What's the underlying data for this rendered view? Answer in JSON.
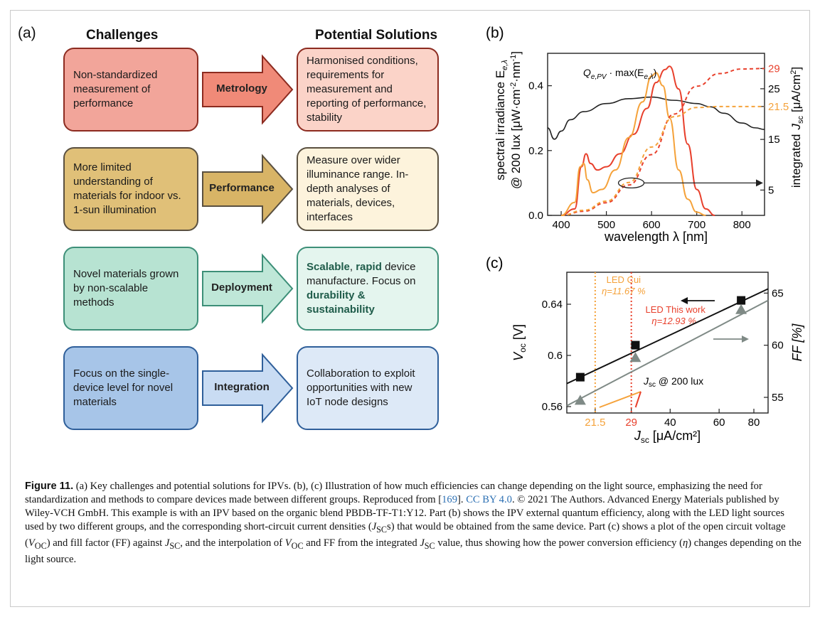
{
  "panel_a": {
    "label": "(a)",
    "col_challenges": "Challenges",
    "col_solutions": "Potential Solutions",
    "rows": [
      {
        "challenge": "Non-standardized measurement of performance",
        "arrow": "Metrology",
        "solution": "Harmonised conditions, requirements for measurement and reporting of performance, stability",
        "colors": {
          "fill": "#f2a59a",
          "stroke": "#8c2b20",
          "sfill": "#fbd3c8",
          "arrow": "#f08a78"
        }
      },
      {
        "challenge": "More limited understanding of materials for indoor vs. 1-sun illumination",
        "arrow": "Performance",
        "solution": "Measure over wider illuminance range. In-depth analyses of materials, devices, interfaces",
        "colors": {
          "fill": "#e0c078",
          "stroke": "#5a5040",
          "sfill": "#fdf3dc",
          "arrow": "#d8b466"
        }
      },
      {
        "challenge": "Novel materials grown by non-scalable methods",
        "arrow": "Deployment",
        "solution_parts": [
          "Scalable",
          ", ",
          "rapid",
          " device manufacture. Focus on ",
          "durability",
          " ",
          "& sustainability"
        ],
        "colors": {
          "fill": "#b7e3d2",
          "stroke": "#3d8f78",
          "sfill": "#e4f5ee",
          "arrow": "#bfe7d8"
        }
      },
      {
        "challenge": "Focus on the single-device level for novel materials",
        "arrow": "Integration",
        "solution": "Collaboration to exploit opportunities with new IoT node designs",
        "colors": {
          "fill": "#a7c5e8",
          "stroke": "#2f5f9a",
          "sfill": "#dde9f7",
          "arrow": "#c9dcf3"
        }
      }
    ]
  },
  "chart_data": [
    {
      "panel": "(b)",
      "type": "line",
      "xlabel": "wavelength λ [nm]",
      "ylabel_left_1": "spectral irradiance E",
      "ylabel_left_sub": "e,λ",
      "ylabel_left_2": "@ 200 lux [μW·cm",
      "ylabel_left_sup1": "-2",
      "ylabel_left_mid": "·nm",
      "ylabel_left_sup2": "-1",
      "ylabel_left_end": "]",
      "ylabel_right_1": "integrated",
      "ylabel_right_2": "J",
      "ylabel_right_sub": "sc",
      "ylabel_right_3": "[μA/cm",
      "ylabel_right_sup": "2",
      "ylabel_right_end": "]",
      "xlim": [
        370,
        850
      ],
      "ylim": [
        0,
        0.5
      ],
      "y2lim": [
        0,
        32
      ],
      "xticks": [
        400,
        500,
        600,
        700,
        800
      ],
      "yticks": [
        0.0,
        0.2,
        0.4
      ],
      "ytick_labels": [
        "0.0",
        "0.2",
        "0.4"
      ],
      "y2ticks": [
        5,
        15,
        25
      ],
      "y2_annotations": [
        {
          "value": 29,
          "label": "29",
          "color": "#e8402c"
        },
        {
          "value": 21.5,
          "label": "21.5",
          "color": "#f5a23a"
        }
      ],
      "annotation": {
        "text_main": "Q",
        "text_sub": "e,PV",
        "text_mid": " · max(E",
        "text_sub2": "e,λ",
        "text_end": ")"
      },
      "series": [
        {
          "kind": "eqe",
          "color": "#222222",
          "x": [
            370,
            385,
            400,
            420,
            450,
            500,
            550,
            600,
            650,
            700,
            730,
            760,
            800,
            830,
            850
          ],
          "y": [
            0.27,
            0.235,
            0.26,
            0.295,
            0.32,
            0.345,
            0.36,
            0.365,
            0.355,
            0.345,
            0.335,
            0.315,
            0.285,
            0.27,
            0.265
          ]
        },
        {
          "kind": "spectrum",
          "color": "#e8402c",
          "x": [
            400,
            430,
            445,
            455,
            465,
            480,
            500,
            530,
            560,
            590,
            610,
            630,
            640,
            660,
            680,
            700,
            720,
            740
          ],
          "y": [
            0.0,
            0.02,
            0.15,
            0.19,
            0.16,
            0.14,
            0.15,
            0.19,
            0.25,
            0.33,
            0.41,
            0.45,
            0.46,
            0.39,
            0.22,
            0.08,
            0.02,
            0.0
          ]
        },
        {
          "kind": "spectrum",
          "color": "#f5a23a",
          "x": [
            400,
            430,
            442,
            450,
            458,
            470,
            490,
            520,
            550,
            580,
            600,
            610,
            625,
            640,
            660,
            680,
            700,
            720
          ],
          "y": [
            0.0,
            0.04,
            0.15,
            0.16,
            0.11,
            0.07,
            0.08,
            0.14,
            0.24,
            0.35,
            0.43,
            0.44,
            0.4,
            0.3,
            0.14,
            0.05,
            0.01,
            0.0
          ]
        },
        {
          "kind": "integrated",
          "color": "#e8402c",
          "dashed": true,
          "x": [
            400,
            450,
            500,
            550,
            600,
            650,
            700,
            750,
            800,
            850
          ],
          "y2": [
            0,
            0.8,
            2.5,
            6.0,
            12.0,
            20.0,
            25.5,
            28.0,
            28.9,
            29.0
          ]
        },
        {
          "kind": "integrated",
          "color": "#f5a23a",
          "dashed": true,
          "x": [
            400,
            450,
            500,
            550,
            600,
            650,
            700,
            750,
            800,
            850
          ],
          "y2": [
            0,
            1.0,
            2.8,
            6.5,
            13.5,
            19.5,
            21.3,
            21.5,
            21.5,
            21.5
          ]
        }
      ]
    },
    {
      "panel": "(c)",
      "type": "scatter",
      "xlabel_main": "J",
      "xlabel_sub": "sc",
      "xlabel_end": " [μA/cm²]",
      "ylabel_left_main": "V",
      "ylabel_left_sub": "oc",
      "ylabel_left_end": " [V]",
      "ylabel_right": "FF [%]",
      "xscale": "log",
      "xlim": [
        17,
        90
      ],
      "ylim": [
        0.555,
        0.665
      ],
      "y2lim": [
        53.5,
        67
      ],
      "xticks": [
        40,
        60,
        80
      ],
      "xtick_labels": [
        "40",
        "60",
        "80"
      ],
      "xtick_highlights": [
        {
          "value": 21.5,
          "label": "21.5",
          "color": "#f5a23a"
        },
        {
          "value": 29,
          "label": "29",
          "color": "#e8402c"
        }
      ],
      "yticks": [
        0.56,
        0.6,
        0.64
      ],
      "ytick_labels": [
        "0.56",
        "0.6",
        "0.64"
      ],
      "y2ticks": [
        55,
        60,
        65
      ],
      "voc": {
        "x": [
          19,
          30,
          72
        ],
        "y": [
          0.583,
          0.608,
          0.643
        ]
      },
      "ff": {
        "x": [
          19,
          30,
          72
        ],
        "y2": [
          54.7,
          58.8,
          63.4
        ]
      },
      "vlines": [
        {
          "x": 21.5,
          "color": "#f5a23a",
          "label_1": "LED Cui",
          "label_2": "η=11.67 %"
        },
        {
          "x": 29,
          "color": "#e8402c",
          "label_1": "LED This work",
          "label_2": "η=12.93 %"
        }
      ],
      "jsc_note_main": "J",
      "jsc_note_sub": "sc",
      "jsc_note_end": " @ 200 lux"
    }
  ],
  "caption": {
    "fig": "Figure 11.",
    "t1": " (a) Key challenges and potential solutions for IPVs. (b), (c) Illustration of how much efficiencies can change depending on the light source, emphasizing the need for standardization and methods to compare devices made between different groups. Reproduced from [",
    "ref": "169",
    "t2": "]. ",
    "license": "CC BY 4.0",
    "t3": ". © 2021 The Authors. Advanced Energy Materials published by Wiley-VCH GmbH. This example is with an IPV based on the organic blend PBDB-TF-T1:Y12. Part (b) shows the IPV external quantum efficiency, along with the LED light sources used by two different groups, and the corresponding short-circuit current densities (",
    "jsc1": "J",
    "jsc1_sub": "SC",
    "t4": "s) that would be obtained from the same device. Part (c) shows a plot of the open circuit voltage (",
    "voc1": "V",
    "voc1_sub": "OC",
    "t5": ") and fill factor (FF) against ",
    "jsc2": "J",
    "jsc2_sub": "SC",
    "t6": ", and the interpolation of ",
    "voc2": "V",
    "voc2_sub": "OC",
    "t7": " and FF from the integrated ",
    "jsc3": "J",
    "jsc3_sub": "SC",
    "t8": " value, thus showing how the power conversion efficiency (",
    "eta": "η",
    "t9": ") changes depending on the light source."
  }
}
